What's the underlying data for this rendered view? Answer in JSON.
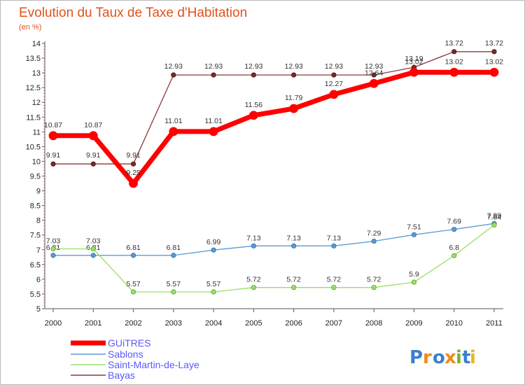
{
  "chart_data": {
    "type": "line",
    "title": "Evolution du Taux de Taxe d'Habitation",
    "subtitle": "(en %)",
    "categories": [
      "2000",
      "2001",
      "2002",
      "2003",
      "2004",
      "2005",
      "2006",
      "2007",
      "2008",
      "2009",
      "2010",
      "2011"
    ],
    "ylim": [
      5,
      14
    ],
    "yticks": [
      5,
      5.5,
      6,
      6.5,
      7,
      7.5,
      8,
      8.5,
      9,
      9.5,
      10,
      10.5,
      11,
      11.5,
      12,
      12.5,
      13,
      13.5,
      14
    ],
    "grid": false,
    "legend_position": "bottom-left",
    "series": [
      {
        "name": "GUiTRES",
        "color": "#ff0000",
        "values": [
          10.87,
          10.87,
          9.25,
          11.01,
          11.01,
          11.56,
          11.79,
          12.27,
          12.64,
          13.02,
          13.02,
          13.02
        ],
        "labels": [
          "10.87",
          "10.87",
          "9.25",
          "11.01",
          "11.01",
          "11.56",
          "11.79",
          "12.27",
          "12.64",
          "13.02",
          "13.02",
          "13.02"
        ]
      },
      {
        "name": "Sablons",
        "color": "#5b9bd5",
        "values": [
          6.81,
          6.81,
          6.81,
          6.81,
          6.99,
          7.13,
          7.13,
          7.13,
          7.29,
          7.51,
          7.69,
          7.89
        ],
        "labels": [
          "6.81",
          "6.81",
          "6.81",
          "6.81",
          "6.99",
          "7.13",
          "7.13",
          "7.13",
          "7.29",
          "7.51",
          "7.69",
          "7.89"
        ]
      },
      {
        "name": "Saint-Martin-de-Laye",
        "color": "#99e066",
        "values": [
          7.03,
          7.03,
          5.57,
          5.57,
          5.57,
          5.72,
          5.72,
          5.72,
          5.72,
          5.9,
          6.8,
          7.84
        ],
        "labels": [
          "7.03",
          "7.03",
          "5.57",
          "5.57",
          "5.57",
          "5.72",
          "5.72",
          "5.72",
          "5.72",
          "5.9",
          "6.8",
          "7.84"
        ]
      },
      {
        "name": "Bayas",
        "color": "#8b3a3a",
        "values": [
          9.91,
          9.91,
          9.91,
          12.93,
          12.93,
          12.93,
          12.93,
          12.93,
          12.93,
          13.19,
          13.72,
          13.72
        ],
        "labels": [
          "9.91",
          "9.91",
          "9.91",
          "12.93",
          "12.93",
          "12.93",
          "12.93",
          "12.93",
          "12.93",
          "13.19",
          "13.72",
          "13.72"
        ]
      }
    ]
  },
  "brand": {
    "text": "Proxiti"
  }
}
